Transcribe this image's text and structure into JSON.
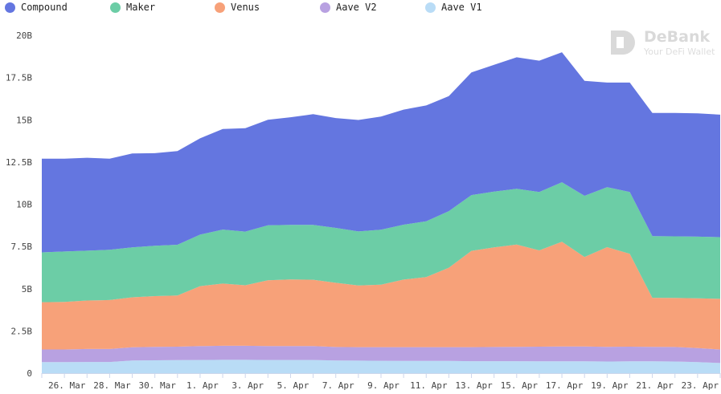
{
  "chart_data": {
    "type": "area",
    "stacked": true,
    "title": "",
    "xlabel": "",
    "ylabel": "",
    "legend_position": "top",
    "grid": false,
    "ylim": [
      0,
      20
    ],
    "y_ticks": [
      0,
      2.5,
      5,
      7.5,
      10,
      12.5,
      15,
      17.5,
      20
    ],
    "y_tick_labels": [
      "0",
      "2.5B",
      "5B",
      "7.5B",
      "10B",
      "12.5B",
      "15B",
      "17.5B",
      "20B"
    ],
    "x": [
      "25. Mar",
      "26. Mar",
      "27. Mar",
      "28. Mar",
      "29. Mar",
      "30. Mar",
      "31. Mar",
      "1. Apr",
      "2. Apr",
      "3. Apr",
      "4. Apr",
      "5. Apr",
      "6. Apr",
      "7. Apr",
      "8. Apr",
      "9. Apr",
      "10. Apr",
      "11. Apr",
      "12. Apr",
      "13. Apr",
      "14. Apr",
      "15. Apr",
      "16. Apr",
      "17. Apr",
      "18. Apr",
      "19. Apr",
      "20. Apr",
      "21. Apr",
      "22. Apr",
      "23. Apr",
      "24. Apr"
    ],
    "x_tick_labels": [
      "26. Mar",
      "28. Mar",
      "30. Mar",
      "1. Apr",
      "3. Apr",
      "5. Apr",
      "7. Apr",
      "9. Apr",
      "11. Apr",
      "13. Apr",
      "15. Apr",
      "17. Apr",
      "19. Apr",
      "21. Apr",
      "23. Apr"
    ],
    "series": [
      {
        "name": "Aave V1",
        "color": "#b9dcf6",
        "values": [
          0.65,
          0.65,
          0.66,
          0.66,
          0.75,
          0.76,
          0.77,
          0.78,
          0.79,
          0.79,
          0.78,
          0.78,
          0.78,
          0.75,
          0.74,
          0.73,
          0.72,
          0.72,
          0.72,
          0.71,
          0.71,
          0.71,
          0.7,
          0.7,
          0.7,
          0.69,
          0.7,
          0.7,
          0.69,
          0.65,
          0.6
        ]
      },
      {
        "name": "Aave V2",
        "color": "#b8a1e1",
        "values": [
          0.75,
          0.75,
          0.77,
          0.77,
          0.78,
          0.8,
          0.8,
          0.82,
          0.83,
          0.83,
          0.82,
          0.82,
          0.82,
          0.8,
          0.8,
          0.81,
          0.82,
          0.82,
          0.82,
          0.83,
          0.84,
          0.85,
          0.87,
          0.88,
          0.88,
          0.87,
          0.87,
          0.86,
          0.86,
          0.83,
          0.8
        ]
      },
      {
        "name": "Venus",
        "color": "#f7a179",
        "values": [
          2.8,
          2.82,
          2.87,
          2.9,
          2.96,
          3.0,
          3.03,
          3.55,
          3.68,
          3.58,
          3.9,
          3.95,
          3.93,
          3.8,
          3.65,
          3.7,
          4.0,
          4.15,
          4.7,
          5.7,
          5.9,
          6.05,
          5.7,
          6.2,
          5.3,
          5.9,
          5.5,
          2.9,
          2.9,
          2.95,
          3.0
        ]
      },
      {
        "name": "Maker",
        "color": "#6ccda6",
        "values": [
          2.95,
          2.98,
          2.95,
          2.97,
          2.96,
          2.98,
          3.0,
          3.05,
          3.2,
          3.18,
          3.25,
          3.23,
          3.25,
          3.25,
          3.2,
          3.25,
          3.25,
          3.3,
          3.35,
          3.3,
          3.3,
          3.3,
          3.45,
          3.52,
          3.62,
          3.55,
          3.65,
          3.65,
          3.65,
          3.65,
          3.65
        ]
      },
      {
        "name": "Compound",
        "color": "#6476e0",
        "values": [
          5.55,
          5.5,
          5.5,
          5.4,
          5.55,
          5.48,
          5.55,
          5.7,
          5.95,
          6.12,
          6.25,
          6.37,
          6.55,
          6.5,
          6.6,
          6.7,
          6.81,
          6.86,
          6.81,
          7.26,
          7.5,
          7.79,
          7.78,
          7.7,
          6.8,
          6.19,
          6.48,
          7.29,
          7.3,
          7.3,
          7.25
        ]
      }
    ]
  },
  "legend": [
    {
      "label": "Compound",
      "color": "#6476e0"
    },
    {
      "label": "Maker",
      "color": "#6ccda6"
    },
    {
      "label": "Venus",
      "color": "#f7a179"
    },
    {
      "label": "Aave V2",
      "color": "#b8a1e1"
    },
    {
      "label": "Aave V1",
      "color": "#b9dcf6"
    }
  ],
  "watermark": {
    "title": "DeBank",
    "subtitle": "Your DeFi Wallet"
  }
}
